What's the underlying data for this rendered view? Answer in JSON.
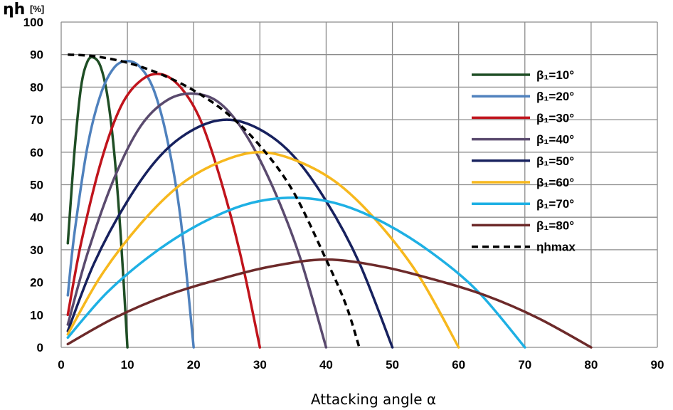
{
  "chart_data": {
    "type": "line",
    "title": "",
    "ylabel_main": "ηh",
    "ylabel_unit": "[%]",
    "xlabel": "Attacking angle α",
    "xlim": [
      0,
      90
    ],
    "ylim": [
      0,
      100
    ],
    "x_ticks": [
      0,
      10,
      20,
      30,
      40,
      50,
      60,
      70,
      80,
      90
    ],
    "y_ticks": [
      0,
      10,
      20,
      30,
      40,
      50,
      60,
      70,
      80,
      90,
      100
    ],
    "x_tick_labels": [
      "0",
      "10",
      "20",
      "30",
      "40",
      "50",
      "60",
      "70",
      "80",
      "90"
    ],
    "y_tick_labels": [
      "0",
      "10",
      "20",
      "30",
      "40",
      "50",
      "60",
      "70",
      "80",
      "90",
      "100"
    ],
    "grid": true,
    "legend_position": "right",
    "series": [
      {
        "name": "β₁=10°",
        "color": "#1f4e25",
        "dash": false,
        "x": [
          1,
          2,
          3,
          4,
          5,
          6,
          7,
          8,
          9,
          10
        ],
        "y": [
          32,
          60,
          80,
          88,
          89,
          86,
          77,
          60,
          34,
          0
        ]
      },
      {
        "name": "β₁=20°",
        "color": "#4f81bd",
        "dash": false,
        "x": [
          1,
          2,
          4,
          6,
          8,
          10,
          12,
          14,
          16,
          18,
          20
        ],
        "y": [
          16,
          35,
          62,
          78,
          86,
          88,
          86,
          79,
          64,
          40,
          0
        ]
      },
      {
        "name": "β₁=30°",
        "color": "#c0141c",
        "dash": false,
        "x": [
          1,
          3,
          6,
          9,
          12,
          15,
          18,
          21,
          24,
          27,
          30
        ],
        "y": [
          10,
          32,
          57,
          74,
          82,
          84,
          80,
          70,
          52,
          29,
          0
        ]
      },
      {
        "name": "β₁=40°",
        "color": "#5a4a6e",
        "dash": false,
        "x": [
          1,
          4,
          8,
          12,
          16,
          20,
          24,
          28,
          32,
          36,
          40
        ],
        "y": [
          7,
          29,
          52,
          68,
          76,
          78,
          75,
          65,
          49,
          28,
          0
        ]
      },
      {
        "name": "β₁=50°",
        "color": "#17215e",
        "dash": false,
        "x": [
          1,
          5,
          10,
          15,
          20,
          25,
          30,
          35,
          40,
          45,
          50
        ],
        "y": [
          5,
          26,
          45,
          59,
          67,
          70,
          67,
          59,
          45,
          26,
          0
        ]
      },
      {
        "name": "β₁=60°",
        "color": "#f7b81d",
        "dash": false,
        "x": [
          1,
          6,
          12,
          18,
          24,
          30,
          36,
          42,
          48,
          54,
          60
        ],
        "y": [
          4,
          22,
          38,
          50,
          57,
          60,
          57,
          50,
          38,
          22,
          0
        ]
      },
      {
        "name": "β₁=70°",
        "color": "#1eb0e4",
        "dash": false,
        "x": [
          1,
          7,
          14,
          21,
          28,
          35,
          42,
          49,
          56,
          63,
          70
        ],
        "y": [
          3,
          17,
          29,
          38,
          44,
          46,
          44,
          38,
          29,
          17,
          0
        ]
      },
      {
        "name": "β₁=80°",
        "color": "#6d2a2a",
        "dash": false,
        "x": [
          1,
          8,
          16,
          24,
          32,
          40,
          48,
          56,
          64,
          72,
          80
        ],
        "y": [
          1,
          9,
          16,
          21,
          25,
          27,
          25,
          21,
          16,
          9,
          0
        ]
      },
      {
        "name": "ηhmax",
        "color": "#000000",
        "dash": true,
        "x": [
          1,
          5,
          10,
          15,
          20,
          25,
          30,
          35,
          40,
          43,
          45
        ],
        "y": [
          90,
          89.5,
          87.5,
          84,
          79,
          72,
          62,
          48,
          27,
          13,
          0
        ]
      }
    ]
  }
}
